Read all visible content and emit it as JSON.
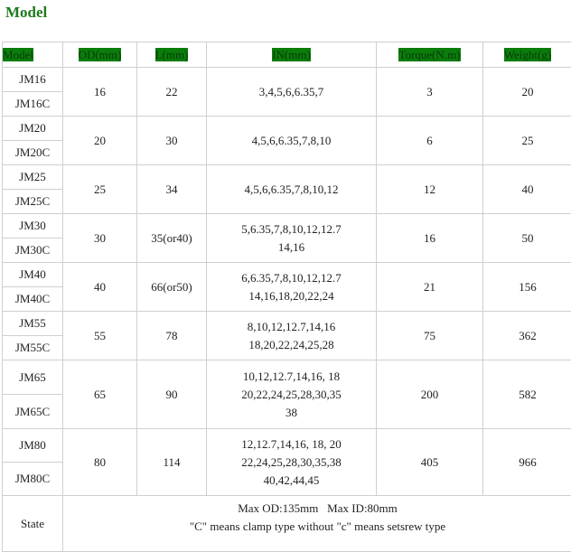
{
  "title": "Model",
  "colors": {
    "header_highlight": "#0a7d0a",
    "title": "#1f7a1f",
    "border": "#cfcfcf"
  },
  "headers": [
    "Model",
    "OD(mm)",
    "L(mm)",
    "IN(mm)",
    "Torque(N.m)",
    "Weight(g)"
  ],
  "rows": [
    {
      "models": [
        "JM16",
        "JM16C"
      ],
      "od": "16",
      "l": "22",
      "in": [
        "3,4,5,6,6.35,7"
      ],
      "torque": "3",
      "weight": "20"
    },
    {
      "models": [
        "JM20",
        "JM20C"
      ],
      "od": "20",
      "l": "30",
      "in": [
        "4,5,6,6.35,7,8,10"
      ],
      "torque": "6",
      "weight": "25"
    },
    {
      "models": [
        "JM25",
        "JM25C"
      ],
      "od": "25",
      "l": "34",
      "in": [
        "4,5,6,6.35,7,8,10,12"
      ],
      "torque": "12",
      "weight": "40"
    },
    {
      "models": [
        "JM30",
        "JM30C"
      ],
      "od": "30",
      "l": "35(or40)",
      "in": [
        "5,6.35,7,8,10,12,12.7",
        "14,16"
      ],
      "torque": "16",
      "weight": "50"
    },
    {
      "models": [
        "JM40",
        "JM40C"
      ],
      "od": "40",
      "l": "66(or50)",
      "in": [
        "6,6.35,7,8,10,12,12.7",
        "14,16,18,20,22,24"
      ],
      "torque": "21",
      "weight": "156"
    },
    {
      "models": [
        "JM55",
        "JM55C"
      ],
      "od": "55",
      "l": "78",
      "in": [
        "8,10,12,12.7,14,16",
        "18,20,22,24,25,28"
      ],
      "torque": "75",
      "weight": "362"
    },
    {
      "models": [
        "JM65",
        "JM65C"
      ],
      "od": "65",
      "l": "90",
      "in": [
        "10,12,12.7,14,16, 18",
        "20,22,24,25,28,30,35",
        "38"
      ],
      "torque": "200",
      "weight": "582"
    },
    {
      "models": [
        "JM80",
        "JM80C"
      ],
      "od": "80",
      "l": "114",
      "in": [
        "12,12.7,14,16, 18, 20",
        "22,24,25,28,30,35,38",
        "40,42,44,45"
      ],
      "torque": "405",
      "weight": "966"
    }
  ],
  "state": {
    "label": "State",
    "line1": "Max OD:135mm   Max ID:80mm",
    "line2": "\"C\" means clamp type without \"c\" means setsrew type"
  }
}
